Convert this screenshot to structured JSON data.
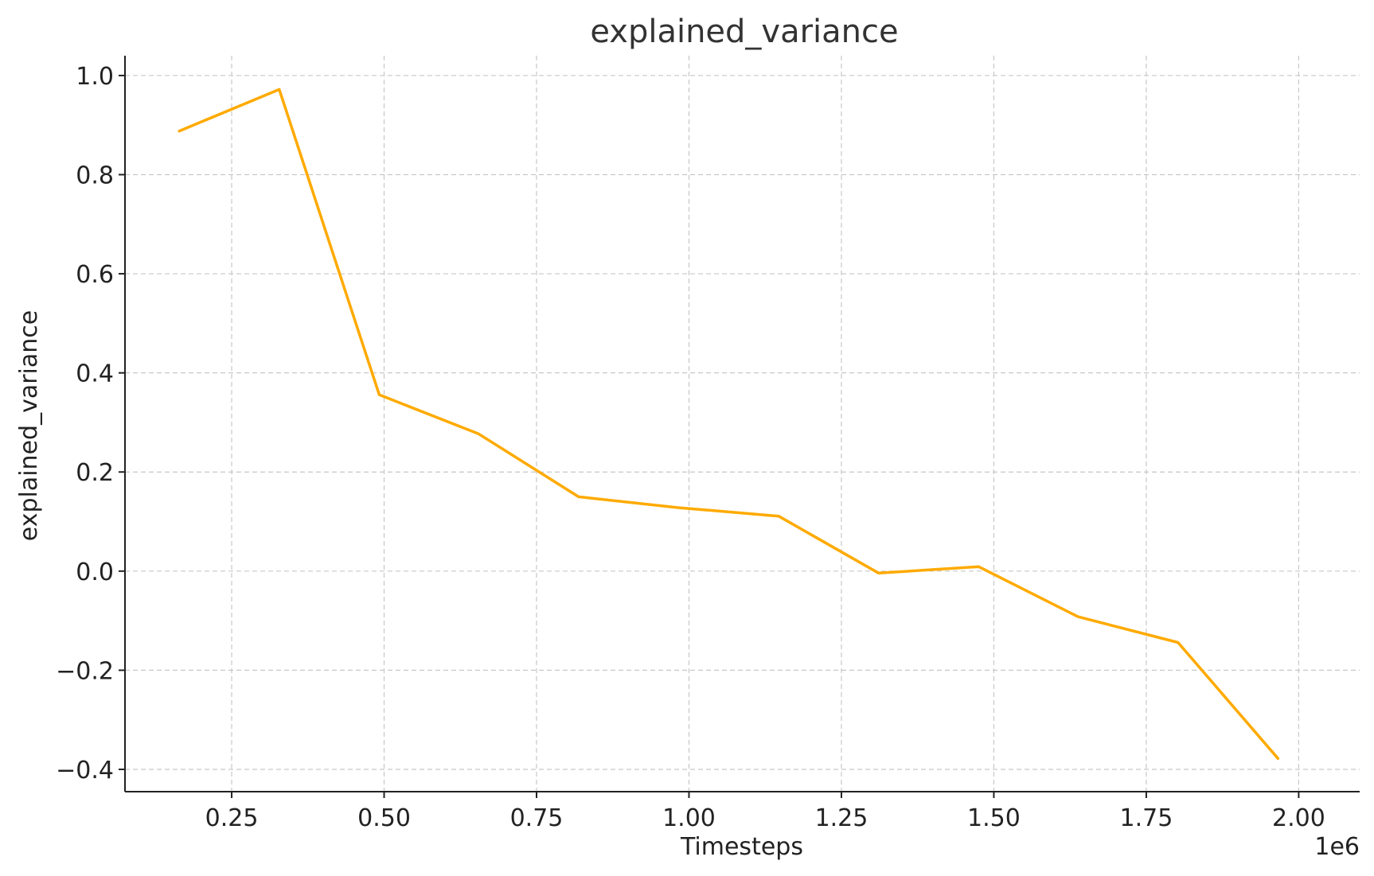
{
  "chart_data": {
    "type": "line",
    "title": "explained_variance",
    "xlabel": "Timesteps",
    "ylabel": "explained_variance",
    "x_offset_label": "1e6",
    "xlim": [
      0.075,
      2.1
    ],
    "ylim": [
      -0.445,
      1.04
    ],
    "xticks": [
      0.25,
      0.5,
      0.75,
      1.0,
      1.25,
      1.5,
      1.75,
      2.0
    ],
    "xtick_labels": [
      "0.25",
      "0.50",
      "0.75",
      "1.00",
      "1.25",
      "1.50",
      "1.75",
      "2.00"
    ],
    "yticks": [
      -0.4,
      -0.2,
      0.0,
      0.2,
      0.4,
      0.6,
      0.8,
      1.0
    ],
    "ytick_labels": [
      "−0.4",
      "−0.2",
      "0.0",
      "0.2",
      "0.4",
      "0.6",
      "0.8",
      "1.0"
    ],
    "grid": true,
    "series": [
      {
        "color": "#FFAA00",
        "x": [
          0.164,
          0.328,
          0.492,
          0.655,
          0.819,
          0.983,
          1.147,
          1.311,
          1.475,
          1.638,
          1.802,
          1.966
        ],
        "y": [
          0.888,
          0.972,
          0.356,
          0.277,
          0.15,
          0.128,
          0.111,
          -0.004,
          0.009,
          -0.092,
          -0.144,
          -0.378
        ]
      }
    ]
  }
}
